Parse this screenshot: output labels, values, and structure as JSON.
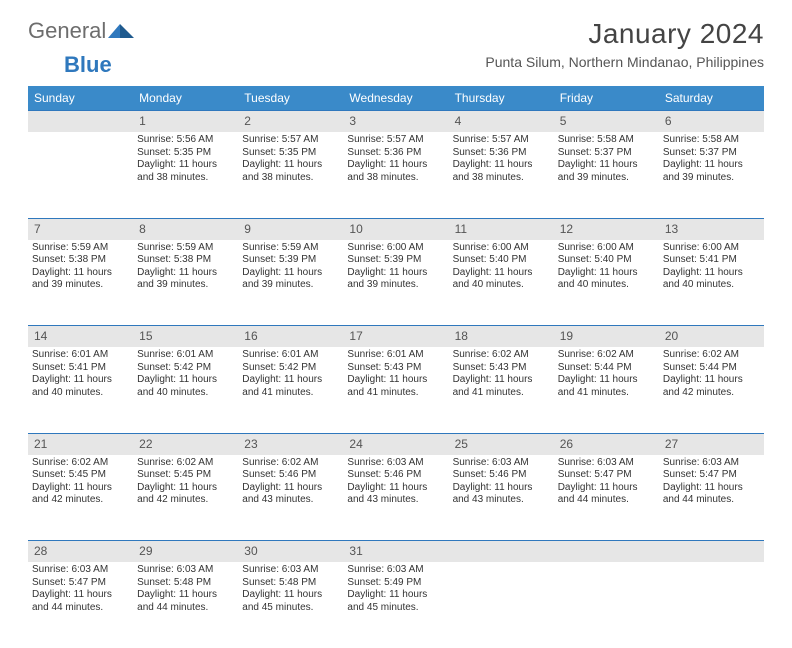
{
  "brand": {
    "part1": "General",
    "part2": "Blue"
  },
  "title": "January 2024",
  "location": "Punta Silum, Northern Mindanao, Philippines",
  "colors": {
    "header_bg": "#3a8ac9",
    "accent": "#2f78bd",
    "daynum_bg": "#e6e6e6",
    "text": "#333333"
  },
  "weekdays": [
    "Sunday",
    "Monday",
    "Tuesday",
    "Wednesday",
    "Thursday",
    "Friday",
    "Saturday"
  ],
  "weeks": [
    [
      {
        "day": "",
        "sunrise": "",
        "sunset": "",
        "daylight": ""
      },
      {
        "day": "1",
        "sunrise": "Sunrise: 5:56 AM",
        "sunset": "Sunset: 5:35 PM",
        "daylight": "Daylight: 11 hours and 38 minutes."
      },
      {
        "day": "2",
        "sunrise": "Sunrise: 5:57 AM",
        "sunset": "Sunset: 5:35 PM",
        "daylight": "Daylight: 11 hours and 38 minutes."
      },
      {
        "day": "3",
        "sunrise": "Sunrise: 5:57 AM",
        "sunset": "Sunset: 5:36 PM",
        "daylight": "Daylight: 11 hours and 38 minutes."
      },
      {
        "day": "4",
        "sunrise": "Sunrise: 5:57 AM",
        "sunset": "Sunset: 5:36 PM",
        "daylight": "Daylight: 11 hours and 38 minutes."
      },
      {
        "day": "5",
        "sunrise": "Sunrise: 5:58 AM",
        "sunset": "Sunset: 5:37 PM",
        "daylight": "Daylight: 11 hours and 39 minutes."
      },
      {
        "day": "6",
        "sunrise": "Sunrise: 5:58 AM",
        "sunset": "Sunset: 5:37 PM",
        "daylight": "Daylight: 11 hours and 39 minutes."
      }
    ],
    [
      {
        "day": "7",
        "sunrise": "Sunrise: 5:59 AM",
        "sunset": "Sunset: 5:38 PM",
        "daylight": "Daylight: 11 hours and 39 minutes."
      },
      {
        "day": "8",
        "sunrise": "Sunrise: 5:59 AM",
        "sunset": "Sunset: 5:38 PM",
        "daylight": "Daylight: 11 hours and 39 minutes."
      },
      {
        "day": "9",
        "sunrise": "Sunrise: 5:59 AM",
        "sunset": "Sunset: 5:39 PM",
        "daylight": "Daylight: 11 hours and 39 minutes."
      },
      {
        "day": "10",
        "sunrise": "Sunrise: 6:00 AM",
        "sunset": "Sunset: 5:39 PM",
        "daylight": "Daylight: 11 hours and 39 minutes."
      },
      {
        "day": "11",
        "sunrise": "Sunrise: 6:00 AM",
        "sunset": "Sunset: 5:40 PM",
        "daylight": "Daylight: 11 hours and 40 minutes."
      },
      {
        "day": "12",
        "sunrise": "Sunrise: 6:00 AM",
        "sunset": "Sunset: 5:40 PM",
        "daylight": "Daylight: 11 hours and 40 minutes."
      },
      {
        "day": "13",
        "sunrise": "Sunrise: 6:00 AM",
        "sunset": "Sunset: 5:41 PM",
        "daylight": "Daylight: 11 hours and 40 minutes."
      }
    ],
    [
      {
        "day": "14",
        "sunrise": "Sunrise: 6:01 AM",
        "sunset": "Sunset: 5:41 PM",
        "daylight": "Daylight: 11 hours and 40 minutes."
      },
      {
        "day": "15",
        "sunrise": "Sunrise: 6:01 AM",
        "sunset": "Sunset: 5:42 PM",
        "daylight": "Daylight: 11 hours and 40 minutes."
      },
      {
        "day": "16",
        "sunrise": "Sunrise: 6:01 AM",
        "sunset": "Sunset: 5:42 PM",
        "daylight": "Daylight: 11 hours and 41 minutes."
      },
      {
        "day": "17",
        "sunrise": "Sunrise: 6:01 AM",
        "sunset": "Sunset: 5:43 PM",
        "daylight": "Daylight: 11 hours and 41 minutes."
      },
      {
        "day": "18",
        "sunrise": "Sunrise: 6:02 AM",
        "sunset": "Sunset: 5:43 PM",
        "daylight": "Daylight: 11 hours and 41 minutes."
      },
      {
        "day": "19",
        "sunrise": "Sunrise: 6:02 AM",
        "sunset": "Sunset: 5:44 PM",
        "daylight": "Daylight: 11 hours and 41 minutes."
      },
      {
        "day": "20",
        "sunrise": "Sunrise: 6:02 AM",
        "sunset": "Sunset: 5:44 PM",
        "daylight": "Daylight: 11 hours and 42 minutes."
      }
    ],
    [
      {
        "day": "21",
        "sunrise": "Sunrise: 6:02 AM",
        "sunset": "Sunset: 5:45 PM",
        "daylight": "Daylight: 11 hours and 42 minutes."
      },
      {
        "day": "22",
        "sunrise": "Sunrise: 6:02 AM",
        "sunset": "Sunset: 5:45 PM",
        "daylight": "Daylight: 11 hours and 42 minutes."
      },
      {
        "day": "23",
        "sunrise": "Sunrise: 6:02 AM",
        "sunset": "Sunset: 5:46 PM",
        "daylight": "Daylight: 11 hours and 43 minutes."
      },
      {
        "day": "24",
        "sunrise": "Sunrise: 6:03 AM",
        "sunset": "Sunset: 5:46 PM",
        "daylight": "Daylight: 11 hours and 43 minutes."
      },
      {
        "day": "25",
        "sunrise": "Sunrise: 6:03 AM",
        "sunset": "Sunset: 5:46 PM",
        "daylight": "Daylight: 11 hours and 43 minutes."
      },
      {
        "day": "26",
        "sunrise": "Sunrise: 6:03 AM",
        "sunset": "Sunset: 5:47 PM",
        "daylight": "Daylight: 11 hours and 44 minutes."
      },
      {
        "day": "27",
        "sunrise": "Sunrise: 6:03 AM",
        "sunset": "Sunset: 5:47 PM",
        "daylight": "Daylight: 11 hours and 44 minutes."
      }
    ],
    [
      {
        "day": "28",
        "sunrise": "Sunrise: 6:03 AM",
        "sunset": "Sunset: 5:47 PM",
        "daylight": "Daylight: 11 hours and 44 minutes."
      },
      {
        "day": "29",
        "sunrise": "Sunrise: 6:03 AM",
        "sunset": "Sunset: 5:48 PM",
        "daylight": "Daylight: 11 hours and 44 minutes."
      },
      {
        "day": "30",
        "sunrise": "Sunrise: 6:03 AM",
        "sunset": "Sunset: 5:48 PM",
        "daylight": "Daylight: 11 hours and 45 minutes."
      },
      {
        "day": "31",
        "sunrise": "Sunrise: 6:03 AM",
        "sunset": "Sunset: 5:49 PM",
        "daylight": "Daylight: 11 hours and 45 minutes."
      },
      {
        "day": "",
        "sunrise": "",
        "sunset": "",
        "daylight": ""
      },
      {
        "day": "",
        "sunrise": "",
        "sunset": "",
        "daylight": ""
      },
      {
        "day": "",
        "sunrise": "",
        "sunset": "",
        "daylight": ""
      }
    ]
  ]
}
